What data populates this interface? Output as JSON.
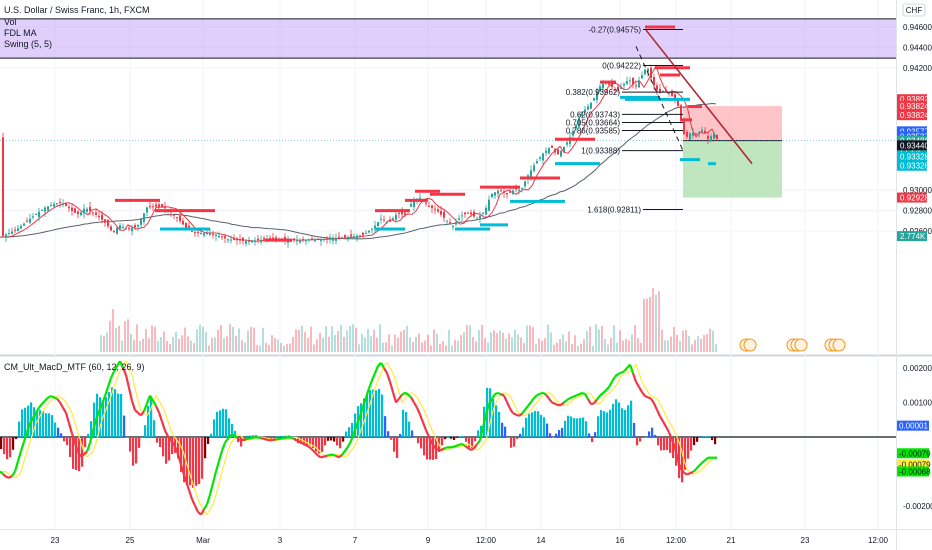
{
  "header": {
    "title": "U.S. Dollar / Swiss Franc, 1h, FXCM",
    "indicators": [
      "Vol",
      "FDL MA",
      "Swing (5, 5)"
    ],
    "currency": "CHF"
  },
  "osc_header": "CM_Ult_MacD_MTF (60, 12, 26, 9)",
  "price_axis": {
    "ticks": [
      "0.94600",
      "0.94400",
      "0.94200",
      "0.93000",
      "0.92800",
      "0.92600"
    ],
    "tags": [
      {
        "text": "0.93892",
        "value": 0.93892,
        "bg": "#f23645",
        "fg": "#ffffff"
      },
      {
        "text": "0.93825",
        "value": 0.93825,
        "bg": "#f23645",
        "fg": "#ffffff"
      },
      {
        "text": "0.93824",
        "value": 0.93824,
        "bg": "#f23645",
        "fg": "#ffffff"
      },
      {
        "text": "0.93824",
        "value": 0.93824,
        "bg": "#f23645",
        "fg": "#ffffff",
        "slot": 1
      },
      {
        "text": "0.93577",
        "value": 0.93577,
        "bg": "#2962ff",
        "fg": "#ffffff"
      },
      {
        "text": "0.93527",
        "value": 0.93527,
        "bg": "#2962ff",
        "fg": "#ffffff"
      },
      {
        "text": "0.93486",
        "value": 0.93486,
        "bg": "#26a69a",
        "fg": "#ffffff"
      },
      {
        "text": "27:29",
        "value": 0.93486,
        "bg": "#26a69a",
        "fg": "#ffffff",
        "slot": 1
      },
      {
        "text": "0.93440",
        "value": 0.9344,
        "bg": "#131722",
        "fg": "#ffffff"
      },
      {
        "text": "0.93328",
        "value": 0.93328,
        "bg": "#00bcd4",
        "fg": "#ffffff"
      },
      {
        "text": "0.93328",
        "value": 0.93328,
        "bg": "#00bcd4",
        "fg": "#ffffff",
        "slot": 1
      },
      {
        "text": "0.92928",
        "value": 0.92928,
        "bg": "#f23645",
        "fg": "#ffffff"
      },
      {
        "text": "2.774K",
        "value": 0.9255,
        "bg": "#26a69a",
        "fg": "#ffffff"
      }
    ]
  },
  "osc_axis": {
    "ticks": [
      "0.00200",
      "0.00100",
      "-0.00200"
    ],
    "tags": [
      {
        "text": "0.00001",
        "value": 1e-05,
        "bg": "#2962ff",
        "fg": "#ffffff"
      },
      {
        "text": "-0.00079",
        "value": -0.00079,
        "bg": "#00e600",
        "fg": "#131722"
      },
      {
        "text": "-0.00079",
        "value": -0.00079,
        "bg": "#ffeb3b",
        "fg": "#131722",
        "slot": 1
      },
      {
        "text": "-0.00068",
        "value": -0.00068,
        "bg": "#00e600",
        "fg": "#131722",
        "slot": 2
      }
    ]
  },
  "time_axis": [
    "23",
    "25",
    "Mar",
    "3",
    "7",
    "9",
    "12:00",
    "14",
    "16",
    "12:00",
    "21",
    "23",
    "12:00"
  ],
  "colors": {
    "up": "#26a69a",
    "down": "#f23645",
    "swing_high": "#f23645",
    "swing_low": "#00bcd4",
    "fdl": "#f23645",
    "ma": "#5d606b",
    "zone": "#c6a8f5",
    "tp": "#a5dca4",
    "sl": "#ffb0b6"
  },
  "chart_data": {
    "type": "candlestick",
    "title": "U.S. Dollar / Swiss Franc, 1h, FXCM",
    "ylim": [
      0.9248,
      0.9468
    ],
    "close_path": [
      [
        0,
        0.9254
      ],
      [
        8,
        0.9258
      ],
      [
        16,
        0.9262
      ],
      [
        24,
        0.9268
      ],
      [
        34,
        0.9276
      ],
      [
        44,
        0.9283
      ],
      [
        54,
        0.9287
      ],
      [
        60,
        0.9288
      ],
      [
        66,
        0.9284
      ],
      [
        72,
        0.9279
      ],
      [
        78,
        0.9276
      ],
      [
        84,
        0.9283
      ],
      [
        90,
        0.9279
      ],
      [
        98,
        0.9274
      ],
      [
        106,
        0.9266
      ],
      [
        112,
        0.9258
      ],
      [
        118,
        0.9266
      ],
      [
        126,
        0.9262
      ],
      [
        136,
        0.9264
      ],
      [
        146,
        0.9283
      ],
      [
        156,
        0.9284
      ],
      [
        166,
        0.9282
      ],
      [
        176,
        0.9273
      ],
      [
        186,
        0.9262
      ],
      [
        196,
        0.9258
      ],
      [
        206,
        0.9258
      ],
      [
        216,
        0.9256
      ],
      [
        226,
        0.9252
      ],
      [
        246,
        0.925
      ],
      [
        266,
        0.9252
      ],
      [
        290,
        0.9251
      ],
      [
        320,
        0.9252
      ],
      [
        346,
        0.9254
      ],
      [
        362,
        0.9256
      ],
      [
        372,
        0.9263
      ],
      [
        380,
        0.9272
      ],
      [
        388,
        0.9268
      ],
      [
        396,
        0.9277
      ],
      [
        404,
        0.9276
      ],
      [
        412,
        0.929
      ],
      [
        420,
        0.9293
      ],
      [
        428,
        0.9284
      ],
      [
        436,
        0.928
      ],
      [
        444,
        0.9272
      ],
      [
        452,
        0.9265
      ],
      [
        460,
        0.9275
      ],
      [
        468,
        0.9278
      ],
      [
        476,
        0.9272
      ],
      [
        484,
        0.928
      ],
      [
        490,
        0.9296
      ],
      [
        498,
        0.93
      ],
      [
        506,
        0.9296
      ],
      [
        514,
        0.9301
      ],
      [
        520,
        0.93
      ],
      [
        526,
        0.9313
      ],
      [
        534,
        0.9326
      ],
      [
        542,
        0.9336
      ],
      [
        550,
        0.9343
      ],
      [
        556,
        0.9334
      ],
      [
        562,
        0.9341
      ],
      [
        568,
        0.935
      ],
      [
        574,
        0.9362
      ],
      [
        580,
        0.9375
      ],
      [
        586,
        0.9381
      ],
      [
        592,
        0.9388
      ],
      [
        598,
        0.9401
      ],
      [
        604,
        0.9406
      ],
      [
        610,
        0.9402
      ],
      [
        616,
        0.9397
      ],
      [
        622,
        0.9403
      ],
      [
        628,
        0.9409
      ],
      [
        634,
        0.9401
      ],
      [
        640,
        0.9411
      ],
      [
        646,
        0.9422
      ],
      [
        652,
        0.9404
      ],
      [
        658,
        0.9395
      ],
      [
        664,
        0.9398
      ],
      [
        670,
        0.9393
      ],
      [
        676,
        0.9387
      ],
      [
        680,
        0.937
      ],
      [
        684,
        0.935
      ],
      [
        690,
        0.9357
      ],
      [
        696,
        0.9355
      ],
      [
        702,
        0.936
      ],
      [
        708,
        0.9348
      ],
      [
        712,
        0.9358
      ],
      [
        716,
        0.935
      ]
    ],
    "fib_levels": [
      {
        "label": "-0.27(0.94575)",
        "value": 0.94575
      },
      {
        "label": "0(0.94222)",
        "value": 0.94222
      },
      {
        "label": "0.382(0.93962)",
        "value": 0.93962
      },
      {
        "label": "0.62(0.93743)",
        "value": 0.93743
      },
      {
        "label": "0.705(0.93664)",
        "value": 0.93664
      },
      {
        "label": "0.786(0.93585)",
        "value": 0.93585
      },
      {
        "label": "1(0.93388)",
        "value": 0.93388
      },
      {
        "label": "1.618(0.92811)",
        "value": 0.92811
      }
    ],
    "supply_zone": [
      0.94295,
      0.9468
    ],
    "position": {
      "entry": 0.93486,
      "stop": 0.93824,
      "target": 0.92928
    },
    "swing_highs": [
      [
        115,
        160,
        0.929
      ],
      [
        155,
        215,
        0.928
      ],
      [
        265,
        292,
        0.9251
      ],
      [
        375,
        410,
        0.928
      ],
      [
        405,
        428,
        0.929
      ],
      [
        415,
        440,
        0.9299
      ],
      [
        430,
        465,
        0.9296
      ],
      [
        480,
        520,
        0.9303
      ],
      [
        520,
        560,
        0.9312
      ],
      [
        555,
        595,
        0.935
      ],
      [
        600,
        616,
        0.9406
      ],
      [
        645,
        675,
        0.946
      ],
      [
        655,
        690,
        0.942
      ],
      [
        660,
        680,
        0.9413
      ],
      [
        680,
        692,
        0.9369
      ],
      [
        688,
        702,
        0.9382
      ]
    ],
    "swing_lows": [
      [
        160,
        210,
        0.9262
      ],
      [
        375,
        405,
        0.9262
      ],
      [
        455,
        490,
        0.9262
      ],
      [
        480,
        508,
        0.9266
      ],
      [
        510,
        565,
        0.9289
      ],
      [
        555,
        600,
        0.9326
      ],
      [
        620,
        660,
        0.9391
      ],
      [
        625,
        690,
        0.9389
      ],
      [
        680,
        700,
        0.933
      ],
      [
        708,
        716,
        0.9326
      ]
    ],
    "osc": {
      "ylim": [
        -0.0023,
        0.0029
      ],
      "line_path": [
        [
          0,
          -0.001
        ],
        [
          8,
          -0.0012
        ],
        [
          14,
          -0.0011
        ],
        [
          20,
          -0.0005
        ],
        [
          30,
          0.0004
        ],
        [
          40,
          0.0009
        ],
        [
          50,
          0.0012
        ],
        [
          58,
          0.0011
        ],
        [
          66,
          0.0007
        ],
        [
          72,
          0.0001
        ],
        [
          80,
          -0.0006
        ],
        [
          88,
          -0.0004
        ],
        [
          96,
          0.0005
        ],
        [
          104,
          0.0011
        ],
        [
          112,
          0.0018
        ],
        [
          120,
          0.0022
        ],
        [
          126,
          0.0018
        ],
        [
          134,
          0.0008
        ],
        [
          142,
          0.0006
        ],
        [
          150,
          0.0012
        ],
        [
          158,
          0.0008
        ],
        [
          166,
          0.0001
        ],
        [
          176,
          -0.0003
        ],
        [
          184,
          -0.0011
        ],
        [
          192,
          -0.0018
        ],
        [
          200,
          -0.0023
        ],
        [
          208,
          -0.0019
        ],
        [
          216,
          -0.001
        ],
        [
          224,
          -0.0002
        ],
        [
          232,
          0.0001
        ],
        [
          240,
          -0.0001
        ],
        [
          256,
          0.0
        ],
        [
          270,
          -0.0001
        ],
        [
          290,
          0.0
        ],
        [
          310,
          -0.0003
        ],
        [
          320,
          -0.0006
        ],
        [
          332,
          -0.0005
        ],
        [
          340,
          -0.0006
        ],
        [
          350,
          -0.0002
        ],
        [
          360,
          0.0006
        ],
        [
          370,
          0.0015
        ],
        [
          380,
          0.0022
        ],
        [
          388,
          0.0018
        ],
        [
          396,
          0.001
        ],
        [
          404,
          0.0013
        ],
        [
          410,
          0.0012
        ],
        [
          418,
          0.0008
        ],
        [
          426,
          0.0002
        ],
        [
          434,
          -0.0003
        ],
        [
          440,
          -0.0004
        ],
        [
          446,
          -0.0003
        ],
        [
          452,
          -0.0003
        ],
        [
          462,
          -0.0002
        ],
        [
          472,
          -0.0004
        ],
        [
          480,
          -0.0001
        ],
        [
          488,
          0.0009
        ],
        [
          496,
          0.0013
        ],
        [
          504,
          0.0012
        ],
        [
          512,
          0.0007
        ],
        [
          520,
          0.0006
        ],
        [
          528,
          0.0009
        ],
        [
          536,
          0.0012
        ],
        [
          544,
          0.0013
        ],
        [
          552,
          0.001
        ],
        [
          560,
          0.0009
        ],
        [
          568,
          0.0011
        ],
        [
          576,
          0.0012
        ],
        [
          584,
          0.0013
        ],
        [
          592,
          0.0009
        ],
        [
          600,
          0.0012
        ],
        [
          608,
          0.0014
        ],
        [
          616,
          0.0018
        ],
        [
          624,
          0.0019
        ],
        [
          630,
          0.0021
        ],
        [
          636,
          0.0016
        ],
        [
          644,
          0.0012
        ],
        [
          652,
          0.0011
        ],
        [
          660,
          0.0006
        ],
        [
          668,
          0.0002
        ],
        [
          674,
          -0.0002
        ],
        [
          680,
          -0.0009
        ],
        [
          686,
          -0.0011
        ],
        [
          694,
          -0.001
        ],
        [
          700,
          -0.0008
        ],
        [
          708,
          -0.0006
        ],
        [
          716,
          -0.0006
        ]
      ],
      "signal_lag": 6
    }
  }
}
